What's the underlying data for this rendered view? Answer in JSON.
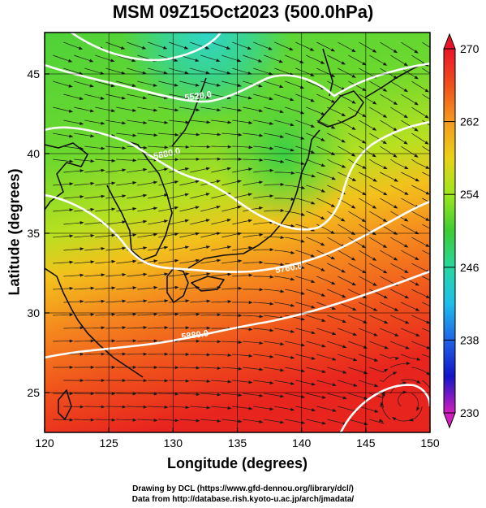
{
  "title": "MSM 09Z15Oct2023 (500.0hPa)",
  "xlabel": "Longitude (degrees)",
  "ylabel": "Latitude  (degrees)",
  "credits": {
    "line1": "Drawing by DCL (https://www.gfd-dennou.org/library/dcl/)",
    "line2": "Data from http://database.rish.kyoto-u.ac.jp/arch/jmadata/"
  },
  "map": {
    "lon_range": [
      120,
      150
    ],
    "lat_range": [
      22.5,
      47.6
    ],
    "lon_ticks": [
      120,
      125,
      130,
      135,
      140,
      145,
      150
    ],
    "lat_ticks": [
      25,
      30,
      35,
      40,
      45
    ],
    "contour_labels": [
      "5520.0",
      "5880.0",
      "5760.0",
      "5880.0"
    ]
  },
  "colorbar": {
    "range": [
      230,
      270
    ],
    "labels": [
      "270",
      "262",
      "254",
      "246",
      "238",
      "230"
    ],
    "colors": [
      "#e8142a",
      "#f0501c",
      "#f59a1e",
      "#e8d21a",
      "#9ee61e",
      "#3ccd32",
      "#28d7a0",
      "#1ebeeb",
      "#1e64e6",
      "#1414c8",
      "#7814b4",
      "#d21ebe"
    ]
  }
}
